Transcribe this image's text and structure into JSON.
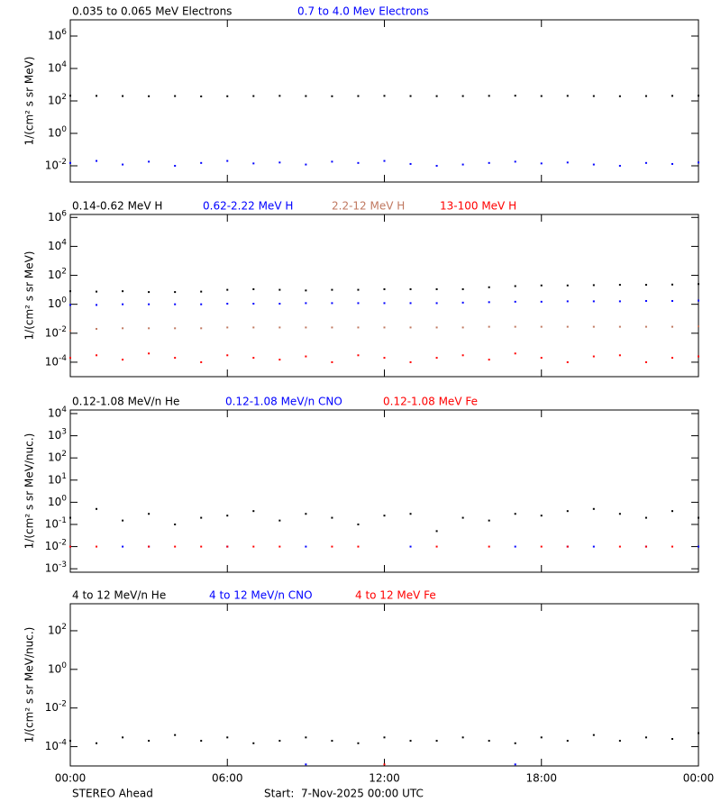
{
  "chart_data": [
    {
      "type": "scatter",
      "ylabel": "1/(cm² s sr MeV)",
      "log_y": true,
      "ylim": [
        0.001,
        10000000
      ],
      "yticks": [
        {
          "value": 0.01,
          "label": "10^-2"
        },
        {
          "value": 1,
          "label": "10^0"
        },
        {
          "value": 100,
          "label": "10^2"
        },
        {
          "value": 10000,
          "label": "10^4"
        },
        {
          "value": 1000000,
          "label": "10^6"
        }
      ],
      "xlim": [
        0,
        24
      ],
      "x": [
        0,
        1,
        2,
        3,
        4,
        5,
        6,
        7,
        8,
        9,
        10,
        11,
        12,
        13,
        14,
        15,
        16,
        17,
        18,
        19,
        20,
        21,
        22,
        23,
        24
      ],
      "series": [
        {
          "name": "0.035 to 0.065 MeV Electrons",
          "color": "#000000",
          "values": [
            210,
            205,
            200,
            195,
            200,
            190,
            195,
            200,
            205,
            200,
            195,
            200,
            205,
            200,
            198,
            200,
            205,
            210,
            200,
            205,
            200,
            195,
            200,
            205,
            210
          ]
        },
        {
          "name": "0.7 to 4.0 Mev Electrons",
          "color": "#0000ff",
          "values": [
            0.015,
            0.02,
            0.012,
            0.018,
            0.01,
            0.015,
            0.02,
            0.014,
            0.016,
            0.012,
            0.018,
            0.015,
            0.02,
            0.013,
            0.01,
            0.012,
            0.015,
            0.018,
            0.014,
            0.016,
            0.012,
            0.01,
            0.015,
            0.013,
            0.016
          ]
        }
      ]
    },
    {
      "type": "scatter",
      "ylabel": "1/(cm² s sr MeV)",
      "log_y": true,
      "ylim": [
        1e-05,
        1600000
      ],
      "yticks": [
        {
          "value": 0.0001,
          "label": "10^-4"
        },
        {
          "value": 0.01,
          "label": "10^-2"
        },
        {
          "value": 1,
          "label": "10^0"
        },
        {
          "value": 100,
          "label": "10^2"
        },
        {
          "value": 10000,
          "label": "10^4"
        },
        {
          "value": 1000000,
          "label": "10^6"
        }
      ],
      "xlim": [
        0,
        24
      ],
      "x": [
        0,
        1,
        2,
        3,
        4,
        5,
        6,
        7,
        8,
        9,
        10,
        11,
        12,
        13,
        14,
        15,
        16,
        17,
        18,
        19,
        20,
        21,
        22,
        23,
        24
      ],
      "series": [
        {
          "name": "0.14-0.62 MeV H",
          "color": "#000000",
          "values": [
            8,
            7.5,
            8,
            7,
            7,
            7.5,
            10,
            11,
            10,
            9,
            10,
            10,
            11,
            11,
            11,
            11,
            15,
            18,
            20,
            20,
            21,
            22,
            22,
            23,
            25
          ]
        },
        {
          "name": "0.62-2.22 MeV H",
          "color": "#0000ff",
          "values": [
            0.9,
            0.9,
            1,
            1,
            1,
            1,
            1.1,
            1.1,
            1.1,
            1.2,
            1.2,
            1.2,
            1.2,
            1.2,
            1.2,
            1.3,
            1.4,
            1.5,
            1.5,
            1.6,
            1.6,
            1.6,
            1.7,
            1.7,
            1.8
          ]
        },
        {
          "name": "2.2-12 MeV H",
          "color": "#c07860",
          "values": [
            0.015,
            0.02,
            0.022,
            0.022,
            0.022,
            0.022,
            0.025,
            0.025,
            0.025,
            0.025,
            0.025,
            0.025,
            0.025,
            0.025,
            0.025,
            0.025,
            0.028,
            0.028,
            0.028,
            0.028,
            0.028,
            0.028,
            0.028,
            0.028,
            0.03
          ]
        },
        {
          "name": "13-100 MeV H",
          "color": "#ff0000",
          "values": [
            0.0002,
            0.0003,
            0.00015,
            0.0004,
            0.0002,
            0.0001,
            0.0003,
            0.0002,
            0.00015,
            0.00025,
            0.0001,
            0.0003,
            0.0002,
            0.0001,
            0.0002,
            0.0003,
            0.00015,
            0.0004,
            0.0002,
            0.0001,
            0.00025,
            0.0003,
            0.0001,
            0.0002,
            0.00025
          ]
        }
      ]
    },
    {
      "type": "scatter",
      "ylabel": "1/(cm² s sr MeV/nuc.)",
      "log_y": true,
      "ylim": [
        0.0007,
        14500
      ],
      "yticks": [
        {
          "value": 0.001,
          "label": "10^-3"
        },
        {
          "value": 0.01,
          "label": "10^-2"
        },
        {
          "value": 0.1,
          "label": "10^-1"
        },
        {
          "value": 1,
          "label": "10^0"
        },
        {
          "value": 10,
          "label": "10^1"
        },
        {
          "value": 100,
          "label": "10^2"
        },
        {
          "value": 1000,
          "label": "10^3"
        },
        {
          "value": 10000,
          "label": "10^4"
        }
      ],
      "xlim": [
        0,
        24
      ],
      "x": [
        0,
        1,
        2,
        3,
        4,
        5,
        6,
        7,
        8,
        9,
        10,
        11,
        12,
        13,
        14,
        15,
        16,
        17,
        18,
        19,
        20,
        21,
        22,
        23,
        24
      ],
      "series": [
        {
          "name": "0.12-1.08 MeV/n He",
          "color": "#000000",
          "values": [
            0.2,
            0.5,
            0.15,
            0.3,
            0.1,
            0.2,
            0.25,
            0.4,
            0.15,
            0.3,
            0.2,
            0.1,
            0.25,
            0.3,
            0.05,
            0.2,
            0.15,
            0.3,
            0.25,
            0.4,
            0.5,
            0.3,
            0.2,
            0.4,
            0.2
          ]
        },
        {
          "name": "0.12-1.08 MeV/n CNO",
          "color": "#0000ff",
          "values": [
            0.01,
            null,
            0.01,
            0.01,
            null,
            null,
            0.01,
            null,
            null,
            0.01,
            null,
            null,
            null,
            0.01,
            null,
            null,
            null,
            0.01,
            null,
            0.01,
            0.01,
            null,
            0.01,
            null,
            0.01
          ]
        },
        {
          "name": "0.12-1.08 MeV Fe",
          "color": "#ff0000",
          "values": [
            0.01,
            0.01,
            null,
            0.01,
            0.01,
            0.01,
            0.01,
            0.01,
            0.01,
            null,
            0.01,
            0.01,
            null,
            null,
            0.01,
            null,
            0.01,
            null,
            0.01,
            0.01,
            null,
            0.01,
            0.01,
            0.01,
            null
          ]
        }
      ]
    },
    {
      "type": "scatter",
      "ylabel": "1/(cm² s sr MeV/nuc.)",
      "log_y": true,
      "ylim": [
        1e-05,
        2500
      ],
      "yticks": [
        {
          "value": 0.0001,
          "label": "10^-4"
        },
        {
          "value": 0.01,
          "label": "10^-2"
        },
        {
          "value": 1,
          "label": "10^0"
        },
        {
          "value": 100,
          "label": "10^2"
        }
      ],
      "xlim": [
        0,
        24
      ],
      "xticks": [
        {
          "value": 0,
          "label": "00:00"
        },
        {
          "value": 6,
          "label": "06:00"
        },
        {
          "value": 12,
          "label": "12:00"
        },
        {
          "value": 18,
          "label": "18:00"
        },
        {
          "value": 24,
          "label": "00:00"
        }
      ],
      "x": [
        0,
        1,
        2,
        3,
        4,
        5,
        6,
        7,
        8,
        9,
        10,
        11,
        12,
        13,
        14,
        15,
        16,
        17,
        18,
        19,
        20,
        21,
        22,
        23,
        24
      ],
      "series": [
        {
          "name": "4 to 12 MeV/n He",
          "color": "#000000",
          "values": [
            0.0002,
            0.00015,
            0.0003,
            0.0002,
            0.0004,
            0.0002,
            0.0003,
            0.00015,
            0.0002,
            0.0003,
            0.0002,
            0.00015,
            0.0003,
            0.0002,
            0.0002,
            0.0003,
            0.0002,
            0.00015,
            0.0003,
            0.0002,
            0.0004,
            0.0002,
            0.0003,
            0.00025,
            0.0005
          ]
        },
        {
          "name": "4 to 12 MeV/n CNO",
          "color": "#0000ff",
          "values": [
            null,
            null,
            null,
            null,
            null,
            null,
            null,
            null,
            null,
            1.2e-05,
            null,
            null,
            null,
            null,
            null,
            null,
            null,
            1.2e-05,
            null,
            null,
            null,
            null,
            null,
            null,
            null
          ]
        },
        {
          "name": "4 to 12 MeV Fe",
          "color": "#ff0000",
          "values": [
            null,
            null,
            null,
            null,
            null,
            null,
            null,
            null,
            null,
            null,
            null,
            null,
            1.2e-05,
            null,
            null,
            null,
            null,
            null,
            null,
            null,
            null,
            null,
            null,
            null,
            null
          ]
        }
      ]
    }
  ],
  "footer": {
    "spacecraft": "STEREO Ahead",
    "start": "Start:  7-Nov-2025 00:00 UTC"
  }
}
